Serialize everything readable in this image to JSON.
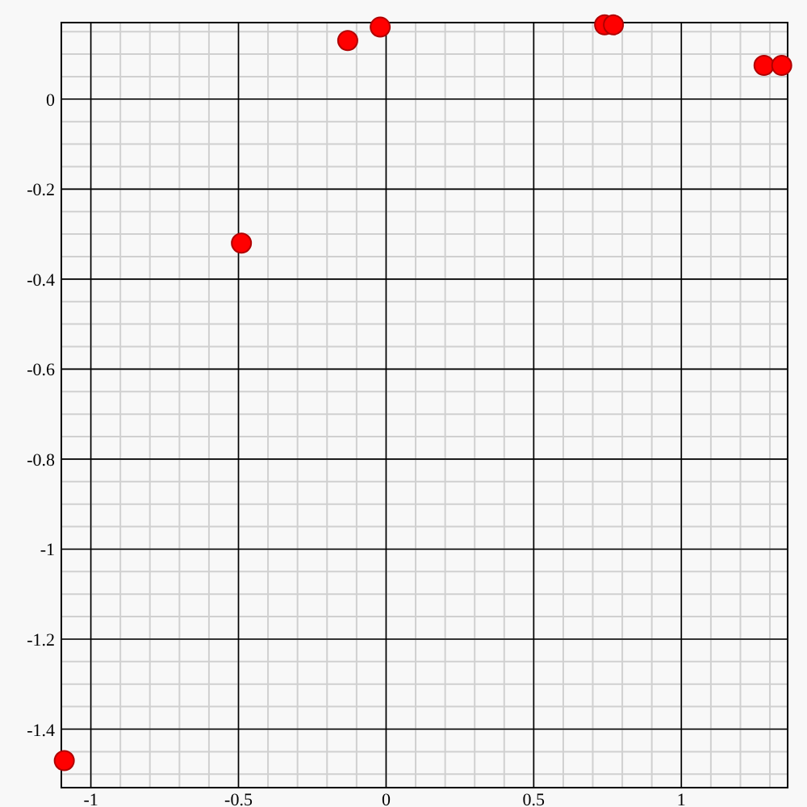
{
  "chart_data": {
    "type": "scatter",
    "x": [
      -1.09,
      -0.49,
      -0.13,
      -0.02,
      0.74,
      0.77,
      1.28,
      1.34
    ],
    "values": [
      -1.47,
      -0.32,
      0.13,
      0.16,
      0.165,
      0.165,
      0.075,
      0.075
    ],
    "color": "#ff0000",
    "xlim": [
      -1.1,
      1.36
    ],
    "ylim": [
      -1.53,
      0.17
    ],
    "xticks": [
      -1,
      -0.5,
      0,
      0.5,
      1
    ],
    "yticks": [
      -1.4,
      -1.2,
      -1,
      -0.8,
      -0.6,
      -0.4,
      -0.2,
      0
    ],
    "grid": true,
    "marker": "circle"
  }
}
